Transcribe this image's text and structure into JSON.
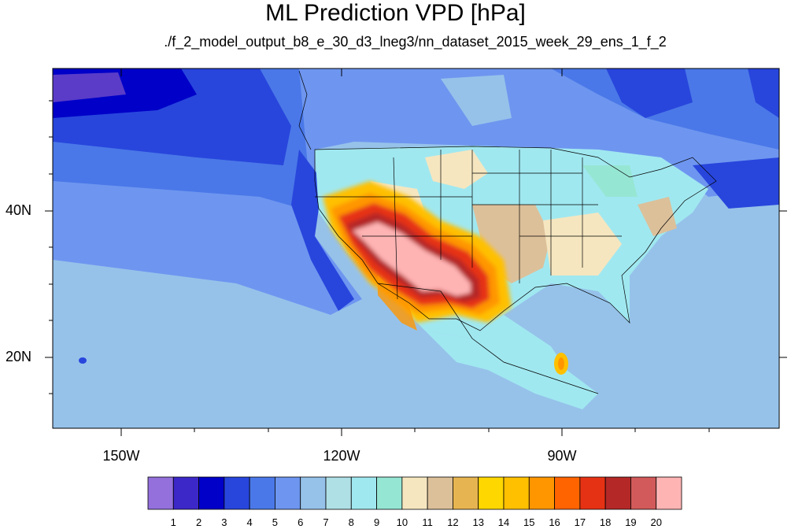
{
  "title": "ML Prediction VPD [hPa]",
  "subtitle": "./f_2_model_output_b8_e_30_d3_lneg3/nn_dataset_2015_week_29_ens_1_f_2",
  "axes": {
    "lon_labels": [
      "150W",
      "120W",
      "90W"
    ],
    "lat_labels": [
      "40N",
      "20N"
    ]
  },
  "colorbar": {
    "labels": [
      "1",
      "2",
      "3",
      "4",
      "5",
      "6",
      "7",
      "8",
      "9",
      "10",
      "11",
      "12",
      "13",
      "14",
      "15",
      "16",
      "17",
      "18",
      "19",
      "20"
    ],
    "colors": [
      "#9370db",
      "#3c28c8",
      "#0000c8",
      "#2846dc",
      "#4a78e8",
      "#6e96f0",
      "#96c2ea",
      "#afe0e6",
      "#a0e8f0",
      "#96e6d4",
      "#f5e6c0",
      "#dcc09a",
      "#e6b450",
      "#ffd700",
      "#ffc000",
      "#ff9600",
      "#ff6400",
      "#e63214",
      "#b42828",
      "#d25a5a",
      "#ffb4b4"
    ]
  },
  "palette": {
    "deep_ocean": "#2846dc",
    "mid_ocean": "#4a78e8",
    "ocean": "#6e96f0",
    "light_ocean": "#96c2ea",
    "pale": "#afe0e6",
    "cyan": "#a0e8f0",
    "tan": "#f5e6c0",
    "brown": "#dcc09a",
    "orange": "#ff9600",
    "red": "#e63214",
    "pink": "#ffb4b4",
    "purple": "#5a3cc8"
  }
}
